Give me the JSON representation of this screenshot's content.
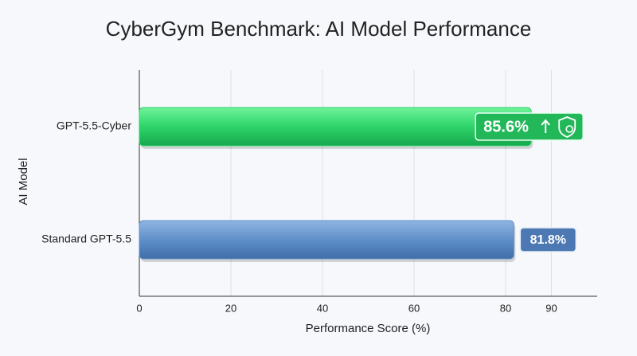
{
  "chart_data": {
    "type": "barh",
    "title": "CyberGym Benchmark: AI Model Performance",
    "x_label": "Performance Score (%)",
    "y_label": "AI Model",
    "categories": [
      "GPT-5.5-Cyber",
      "Standard GPT-5.5"
    ],
    "values": [
      85.6,
      81.8
    ],
    "value_labels": [
      "85.6%",
      "81.8%"
    ],
    "colors": [
      "#2ed46a",
      "#5f8fc9"
    ],
    "xlim": [
      0,
      100
    ],
    "xticks": [
      0,
      20,
      40,
      60,
      80,
      90
    ],
    "grid": true
  }
}
